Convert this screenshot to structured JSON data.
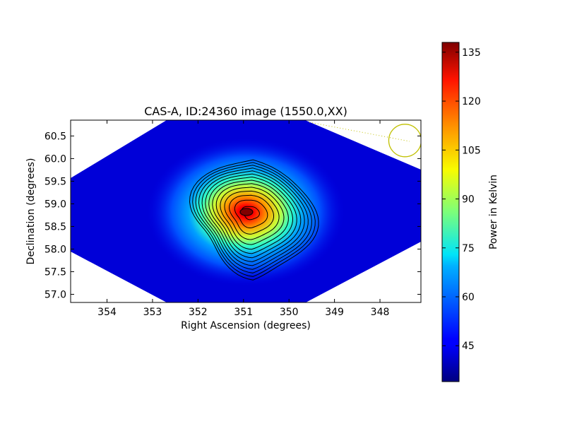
{
  "chart_data": {
    "type": "heatmap",
    "title": "CAS-A, ID:24360 image (1550.0,XX)",
    "xlabel": "Right Ascension (degrees)",
    "ylabel": "Declination (degrees)",
    "xlim": [
      354.8,
      347.1
    ],
    "ylim": [
      56.82,
      60.85
    ],
    "x_ticks": [
      354,
      353,
      352,
      351,
      350,
      349,
      348
    ],
    "y_ticks": [
      57.0,
      57.5,
      58.0,
      58.5,
      59.0,
      59.5,
      60.0,
      60.5
    ],
    "x_tick_labels": [
      "354",
      "353",
      "352",
      "351",
      "350",
      "349",
      "348"
    ],
    "y_tick_labels": [
      "57.0",
      "57.5",
      "58.0",
      "58.5",
      "59.0",
      "59.5",
      "60.0",
      "60.5"
    ],
    "colormap": "jet",
    "colorbar": {
      "label": "Power in Kelvin",
      "range": [
        34,
        138
      ],
      "ticks": [
        45,
        60,
        75,
        90,
        105,
        120,
        135
      ],
      "tick_labels": [
        "45",
        "60",
        "75",
        "90",
        "105",
        "120",
        "135"
      ]
    },
    "peak": {
      "ra": 350.85,
      "dec": 58.81,
      "value": 138
    },
    "background_value": 39,
    "contour_levels": [
      45,
      52,
      59,
      66,
      73,
      80,
      87,
      94,
      101,
      108,
      115,
      122,
      129,
      136
    ],
    "marker_circle": {
      "ra": 347.45,
      "dec": 60.4,
      "color": "#c0c000"
    }
  }
}
